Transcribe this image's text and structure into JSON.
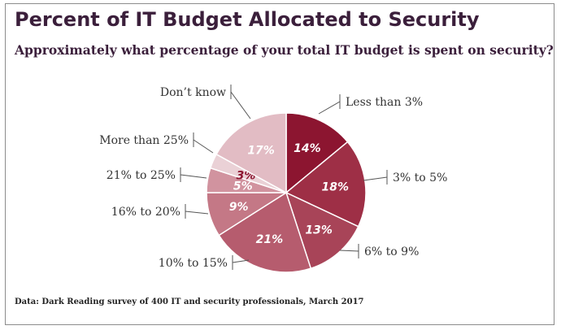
{
  "title": "Percent of IT Budget Allocated to Security",
  "subtitle": "Approximately what percentage of your total IT budget is spent on security?",
  "source": "Data: Dark Reading survey of 400 IT and security professionals, March 2017",
  "chart_data": {
    "type": "pie",
    "title": "Percent of IT Budget Allocated to Security",
    "subtitle": "Approximately what percentage of your total IT budget is spent on security?",
    "start_angle_deg": 0,
    "direction": "clockwise",
    "slices": [
      {
        "label": "Less than 3%",
        "value": 14,
        "value_label": "14%",
        "color": "#8c1530",
        "text_color": "#ffffff"
      },
      {
        "label": "3% to 5%",
        "value": 18,
        "value_label": "18%",
        "color": "#9e2f46",
        "text_color": "#ffffff"
      },
      {
        "label": "6% to 9%",
        "value": 13,
        "value_label": "13%",
        "color": "#a84458",
        "text_color": "#ffffff"
      },
      {
        "label": "10% to 15%",
        "value": 21,
        "value_label": "21%",
        "color": "#b65c6e",
        "text_color": "#ffffff"
      },
      {
        "label": "16% to 20%",
        "value": 9,
        "value_label": "9%",
        "color": "#c47886",
        "text_color": "#ffffff"
      },
      {
        "label": "21% to 25%",
        "value": 5,
        "value_label": "5%",
        "color": "#d1939f",
        "text_color": "#ffffff"
      },
      {
        "label": "More than 25%",
        "value": 3,
        "value_label": "3%",
        "color": "#ead1d6",
        "text_color": "#8c1530"
      },
      {
        "label": "Don’t know",
        "value": 17,
        "value_label": "17%",
        "color": "#e2bcc4",
        "text_color": "#ffffff"
      }
    ]
  }
}
